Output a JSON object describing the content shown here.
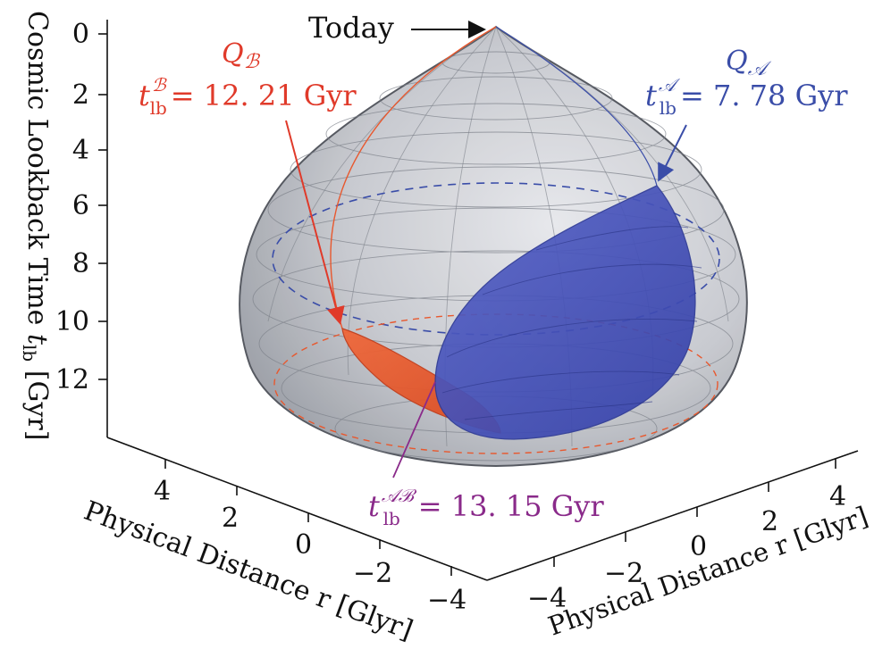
{
  "figure": {
    "today_label": "Today",
    "vertical_axis": {
      "title_main": "Cosmic Lookback Time ",
      "title_var": "t",
      "title_sub": "lb",
      "title_unit": " [Gyr]",
      "ticks": [
        "0",
        "2",
        "4",
        "6",
        "8",
        "10",
        "12"
      ]
    },
    "left_axis": {
      "title": "Physical Distance r [Glyr]",
      "ticks": [
        "4",
        "2",
        "0",
        "−2",
        "−4"
      ]
    },
    "right_axis": {
      "title": "Physical Distance r [Glyr]",
      "ticks": [
        "−4",
        "−2",
        "0",
        "2",
        "4"
      ]
    },
    "observer_b": {
      "name": "Q",
      "name_sub": "ℬ",
      "time_var": "t",
      "time_sub": "lb",
      "time_sup": "ℬ",
      "time_value": "= 12. 21 Gyr",
      "color": "#e03a2a"
    },
    "observer_a": {
      "name": "Q",
      "name_sub": "𝒜",
      "time_var": "t",
      "time_sub": "lb",
      "time_sup": "𝒜",
      "time_value": "= 7. 78 Gyr",
      "color": "#3a4da8"
    },
    "intersection": {
      "time_var": "t",
      "time_sub": "lb",
      "time_sup": "𝒜ℬ",
      "time_value": "= 13. 15 Gyr",
      "color": "#8a2a8a"
    },
    "colors": {
      "cone_fill": "#b9bcc4",
      "cone_edge": "#555a63",
      "light_cone_a": "#3f4cb5",
      "light_cone_b": "#e8582e"
    }
  }
}
